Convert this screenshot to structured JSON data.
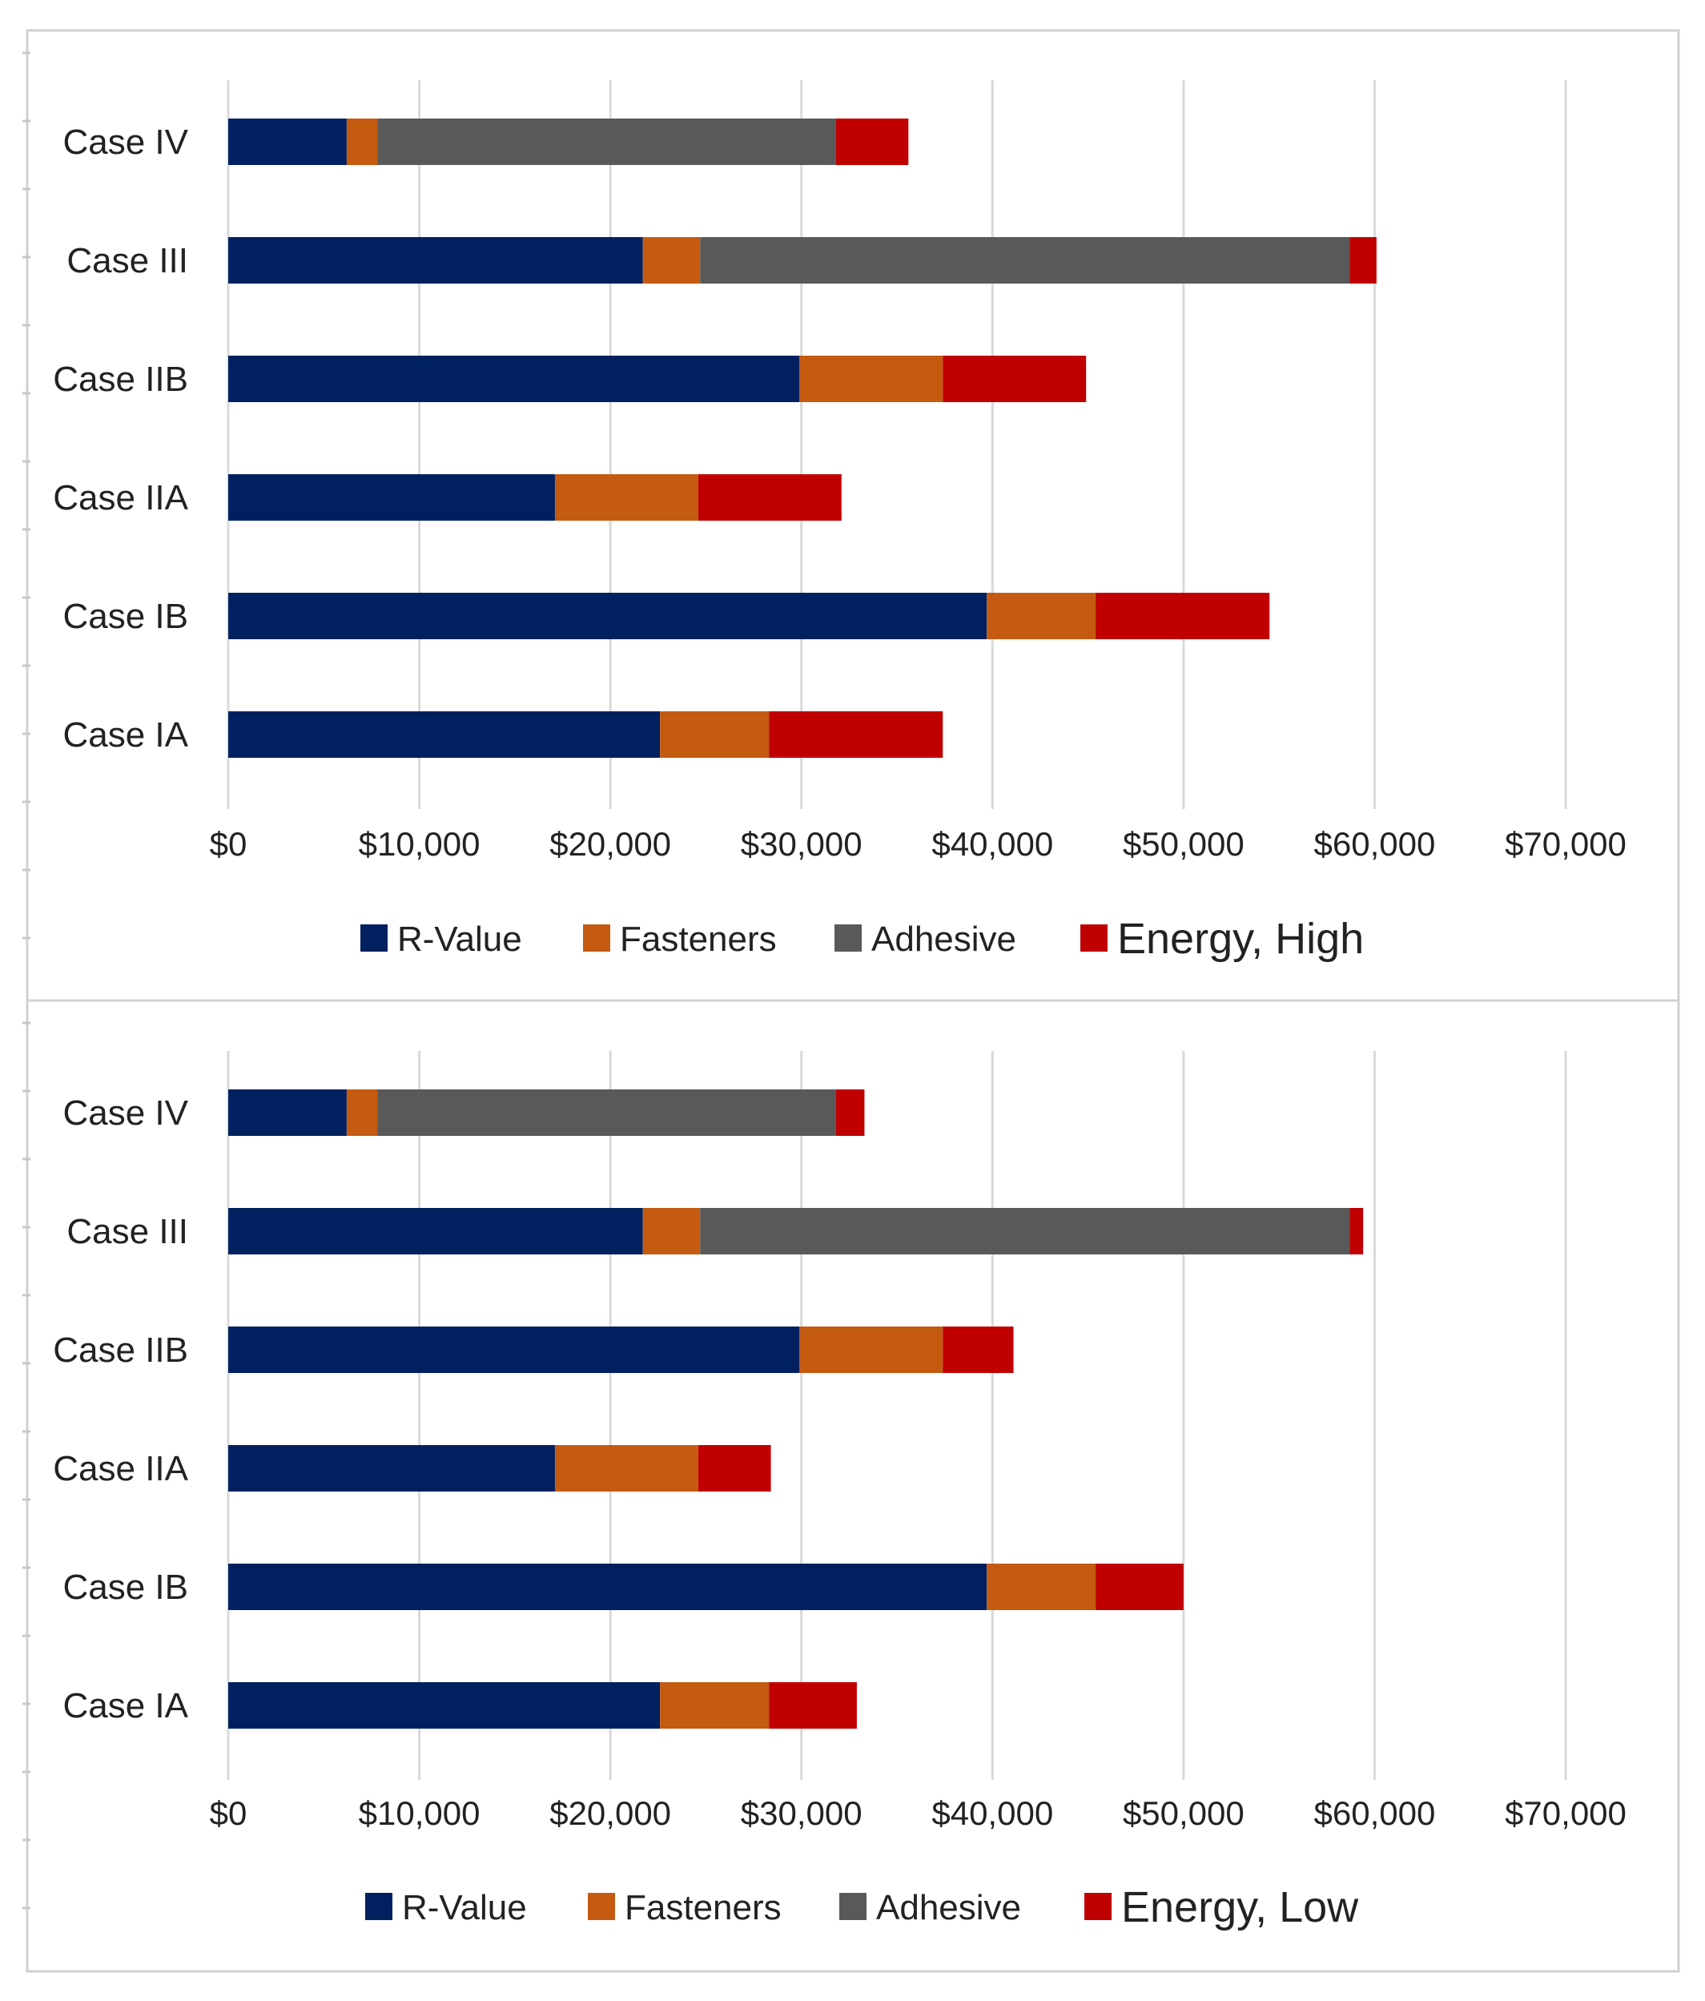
{
  "chart_data": [
    {
      "type": "bar",
      "orientation": "horizontal",
      "stacked": true,
      "title": "",
      "xlabel": "",
      "ylabel": "",
      "xlim": [
        0,
        70000
      ],
      "grid": true,
      "legend_position": "bottom",
      "categories": [
        "Case IV",
        "Case III",
        "Case IIB",
        "Case IIA",
        "Case IB",
        "Case IA"
      ],
      "tick_labels": [
        "$0",
        "$10,000",
        "$20,000",
        "$30,000",
        "$40,000",
        "$50,000",
        "$60,000",
        "$70,000"
      ],
      "series": [
        {
          "name": "R-Value",
          "color": "#002060",
          "values": [
            6200,
            21700,
            29900,
            17100,
            39700,
            22600
          ]
        },
        {
          "name": "Fasteners",
          "color": "#C55A11",
          "values": [
            1600,
            3000,
            7500,
            7500,
            5700,
            5700
          ]
        },
        {
          "name": "Adhesive",
          "color": "#595959",
          "values": [
            24000,
            34000,
            0,
            0,
            0,
            0
          ]
        },
        {
          "name": "Energy, High",
          "color": "#C00000",
          "values": [
            3800,
            1400,
            7500,
            7500,
            9100,
            9100
          ]
        }
      ]
    },
    {
      "type": "bar",
      "orientation": "horizontal",
      "stacked": true,
      "title": "",
      "xlabel": "",
      "ylabel": "",
      "xlim": [
        0,
        70000
      ],
      "grid": true,
      "legend_position": "bottom",
      "categories": [
        "Case IV",
        "Case III",
        "Case IIB",
        "Case IIA",
        "Case IB",
        "Case IA"
      ],
      "tick_labels": [
        "$0",
        "$10,000",
        "$20,000",
        "$30,000",
        "$40,000",
        "$50,000",
        "$60,000",
        "$70,000"
      ],
      "series": [
        {
          "name": "R-Value",
          "color": "#002060",
          "values": [
            6200,
            21700,
            29900,
            17100,
            39700,
            22600
          ]
        },
        {
          "name": "Fasteners",
          "color": "#C55A11",
          "values": [
            1600,
            3000,
            7500,
            7500,
            5700,
            5700
          ]
        },
        {
          "name": "Adhesive",
          "color": "#595959",
          "values": [
            24000,
            34000,
            0,
            0,
            0,
            0
          ]
        },
        {
          "name": "Energy, Low",
          "color": "#C00000",
          "values": [
            1500,
            700,
            3700,
            3800,
            4600,
            4600
          ]
        }
      ]
    }
  ]
}
